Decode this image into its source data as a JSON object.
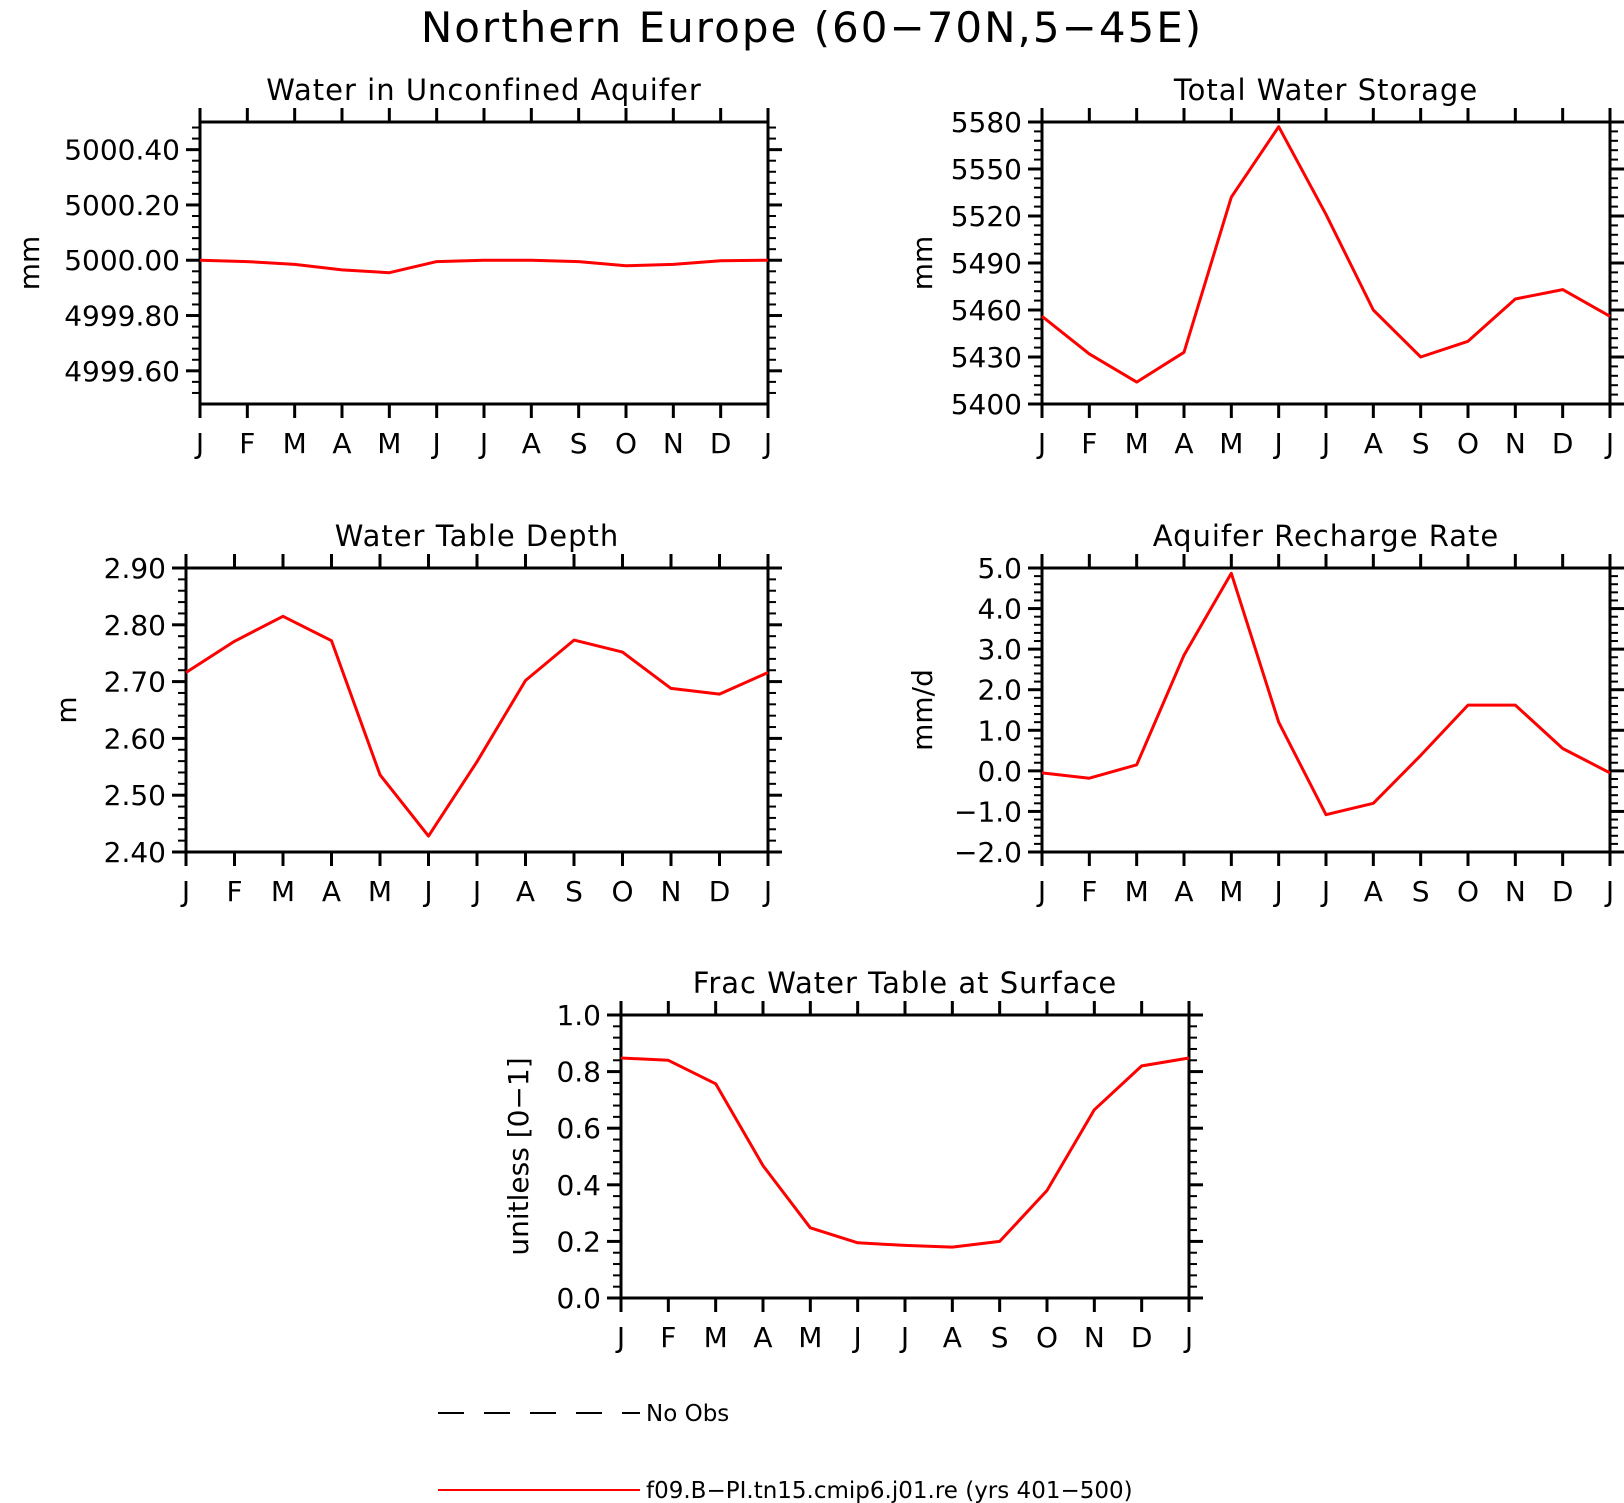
{
  "figure_title": "Northern Europe (60−70N,5−45E)",
  "colors": {
    "series": "#ff0000",
    "obs": "#000000",
    "axes": "#000000"
  },
  "chart_data": [
    {
      "type": "line",
      "title": "Water in Unconfined Aquifer",
      "xlabel": "",
      "ylabel": "mm",
      "x": [
        "J",
        "F",
        "M",
        "A",
        "M",
        "J",
        "J",
        "A",
        "S",
        "O",
        "N",
        "D",
        "J"
      ],
      "ylim": [
        4999.48,
        5000.5
      ],
      "yticks": [
        4999.6,
        4999.8,
        5000.0,
        5000.2,
        5000.4
      ],
      "yticklabels": [
        "4999.60",
        "4999.80",
        "5000.00",
        "5000.20",
        "5000.40"
      ],
      "series": [
        {
          "name": "f09.B−PI.tn15.cmip6.j01.re (yrs 401−500)",
          "values": [
            5000.0,
            4999.995,
            4999.985,
            4999.965,
            4999.955,
            4999.995,
            5000.0,
            5000.0,
            4999.995,
            4999.98,
            4999.985,
            4999.998,
            5000.0
          ]
        }
      ]
    },
    {
      "type": "line",
      "title": "Total Water Storage",
      "xlabel": "",
      "ylabel": "mm",
      "x": [
        "J",
        "F",
        "M",
        "A",
        "M",
        "J",
        "J",
        "A",
        "S",
        "O",
        "N",
        "D",
        "J"
      ],
      "ylim": [
        5400,
        5580
      ],
      "yticks": [
        5400,
        5430,
        5460,
        5490,
        5520,
        5550,
        5580
      ],
      "yticklabels": [
        "5400",
        "5430",
        "5460",
        "5490",
        "5520",
        "5550",
        "5580"
      ],
      "series": [
        {
          "name": "f09.B−PI.tn15.cmip6.j01.re (yrs 401−500)",
          "values": [
            5456,
            5432,
            5414,
            5433,
            5532,
            5577,
            5521,
            5460,
            5430,
            5440,
            5467,
            5473,
            5456
          ]
        }
      ]
    },
    {
      "type": "line",
      "title": "Water Table Depth",
      "xlabel": "",
      "ylabel": "m",
      "x": [
        "J",
        "F",
        "M",
        "A",
        "M",
        "J",
        "J",
        "A",
        "S",
        "O",
        "N",
        "D",
        "J"
      ],
      "ylim": [
        2.4,
        2.9
      ],
      "yticks": [
        2.4,
        2.5,
        2.6,
        2.7,
        2.8,
        2.9
      ],
      "yticklabels": [
        "2.40",
        "2.50",
        "2.60",
        "2.70",
        "2.80",
        "2.90"
      ],
      "series": [
        {
          "name": "f09.B−PI.tn15.cmip6.j01.re (yrs 401−500)",
          "values": [
            2.716,
            2.771,
            2.815,
            2.772,
            2.536,
            2.428,
            2.559,
            2.702,
            2.773,
            2.752,
            2.688,
            2.678,
            2.716
          ]
        }
      ]
    },
    {
      "type": "line",
      "title": "Aquifer Recharge Rate",
      "xlabel": "",
      "ylabel": "mm/d",
      "x": [
        "J",
        "F",
        "M",
        "A",
        "M",
        "J",
        "J",
        "A",
        "S",
        "O",
        "N",
        "D",
        "J"
      ],
      "ylim": [
        -2.0,
        5.0
      ],
      "yticks": [
        -2.0,
        -1.0,
        0.0,
        1.0,
        2.0,
        3.0,
        4.0,
        5.0
      ],
      "yticklabels": [
        "−2.0",
        "−1.0",
        "0.0",
        "1.0",
        "2.0",
        "3.0",
        "4.0",
        "5.0"
      ],
      "series": [
        {
          "name": "f09.B−PI.tn15.cmip6.j01.re (yrs 401−500)",
          "values": [
            -0.05,
            -0.18,
            0.15,
            2.85,
            4.87,
            1.2,
            -1.08,
            -0.8,
            0.38,
            1.62,
            1.62,
            0.55,
            -0.05
          ]
        }
      ]
    },
    {
      "type": "line",
      "title": "Frac Water Table at Surface",
      "xlabel": "",
      "ylabel": "unitless [0−1]",
      "x": [
        "J",
        "F",
        "M",
        "A",
        "M",
        "J",
        "J",
        "A",
        "S",
        "O",
        "N",
        "D",
        "J"
      ],
      "ylim": [
        0.0,
        1.0
      ],
      "yticks": [
        0.0,
        0.2,
        0.4,
        0.6,
        0.8,
        1.0
      ],
      "yticklabels": [
        "0.0",
        "0.2",
        "0.4",
        "0.6",
        "0.8",
        "1.0"
      ],
      "series": [
        {
          "name": "f09.B−PI.tn15.cmip6.j01.re (yrs 401−500)",
          "values": [
            0.848,
            0.84,
            0.757,
            0.468,
            0.248,
            0.195,
            0.186,
            0.18,
            0.2,
            0.38,
            0.665,
            0.82,
            0.848
          ]
        }
      ]
    }
  ],
  "legend": [
    {
      "style": "dashed",
      "color": "#000000",
      "label": "No Obs"
    },
    {
      "style": "solid",
      "color": "#ff0000",
      "label": "f09.B−PI.tn15.cmip6.j01.re (yrs 401−500)"
    }
  ]
}
